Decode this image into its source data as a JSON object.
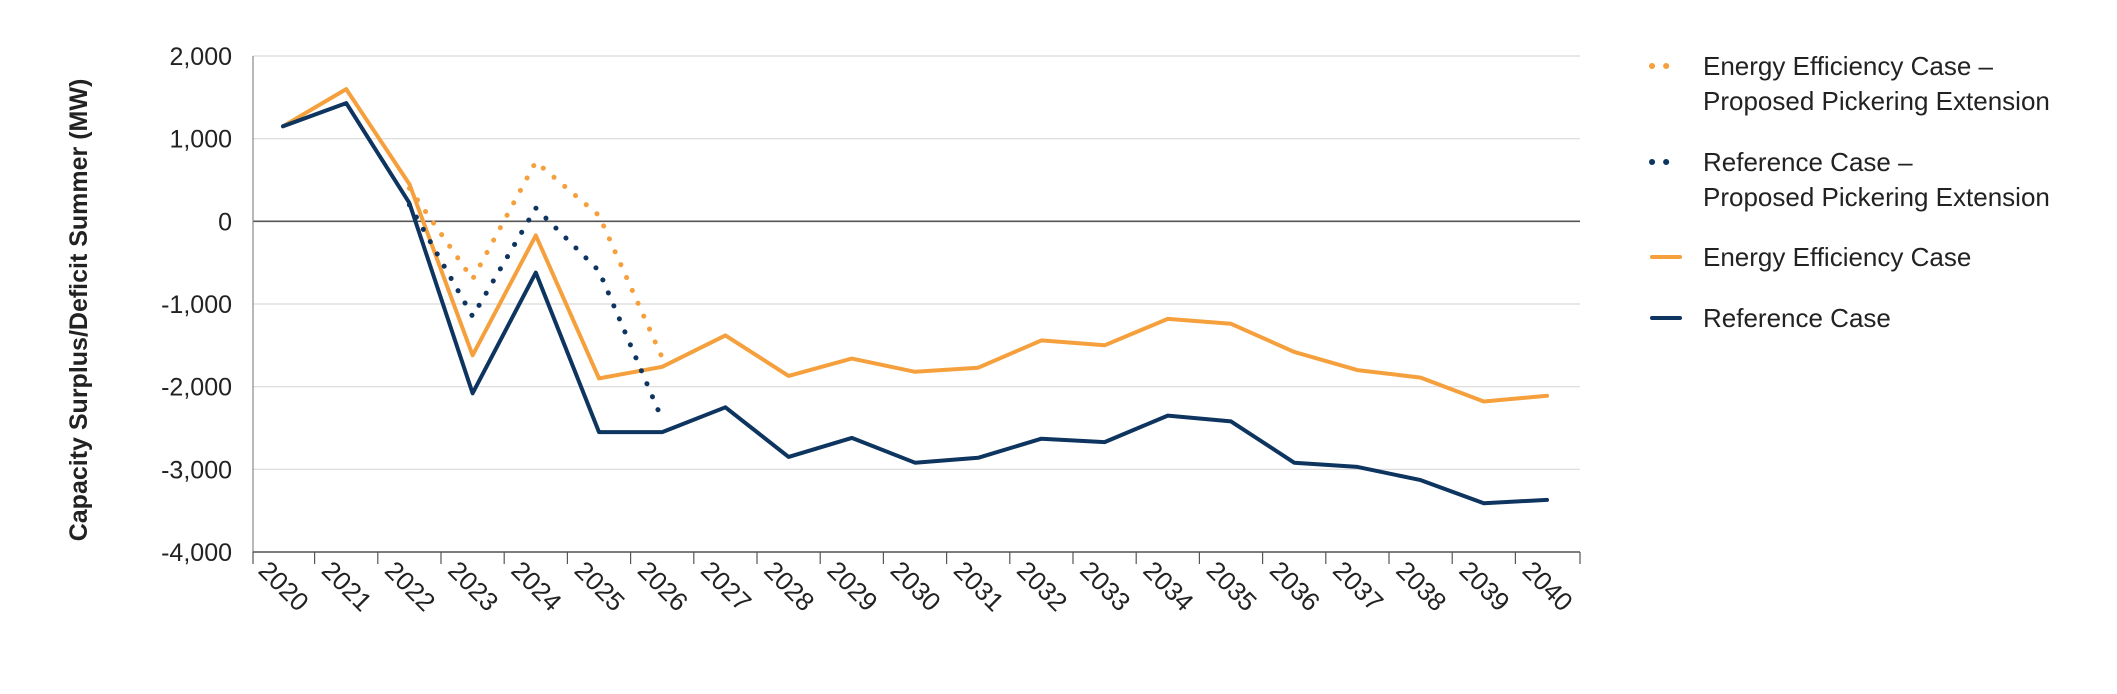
{
  "chart_data": {
    "type": "line",
    "title": "",
    "xlabel": "",
    "ylabel": "Capacity Surplus/Deficit Summer (MW)",
    "ylim": [
      -4000,
      2000
    ],
    "yticks": [
      2000,
      1000,
      0,
      -1000,
      -2000,
      -3000,
      -4000
    ],
    "ytick_labels": [
      "2,000",
      "1,000",
      "0",
      "-1,000",
      "-2,000",
      "-3,000",
      "-4,000"
    ],
    "x": [
      "2020",
      "2021",
      "2022",
      "2023",
      "2024",
      "2025",
      "2026",
      "2027",
      "2028",
      "2029",
      "2030",
      "2031",
      "2032",
      "2033",
      "2034",
      "2035",
      "2036",
      "2037",
      "2038",
      "2039",
      "2040"
    ],
    "grid": "horizontal",
    "legend_position": "right",
    "series": [
      {
        "name": "Energy Efficiency Case – Proposed Pickering Extension",
        "style": "dotted",
        "color": "#F5A03C",
        "values": [
          null,
          null,
          400,
          -700,
          720,
          70,
          -1650,
          null,
          null,
          null,
          null,
          null,
          null,
          null,
          null,
          null,
          null,
          null,
          null,
          null,
          null
        ]
      },
      {
        "name": "Reference Case – Proposed Pickering Extension",
        "style": "dotted",
        "color": "#0E3460",
        "values": [
          null,
          null,
          200,
          -1150,
          160,
          -600,
          -2400,
          null,
          null,
          null,
          null,
          null,
          null,
          null,
          null,
          null,
          null,
          null,
          null,
          null,
          null
        ]
      },
      {
        "name": "Energy Efficiency Case",
        "style": "solid",
        "color": "#F5A03C",
        "values": [
          1150,
          1600,
          450,
          -1620,
          -170,
          -1900,
          -1760,
          -1380,
          -1870,
          -1660,
          -1820,
          -1770,
          -1440,
          -1500,
          -1180,
          -1240,
          -1580,
          -1800,
          -1890,
          -2180,
          -2110
        ]
      },
      {
        "name": "Reference Case",
        "style": "solid",
        "color": "#0E3460",
        "values": [
          1150,
          1430,
          220,
          -2080,
          -620,
          -2550,
          -2550,
          -2250,
          -2850,
          -2620,
          -2920,
          -2860,
          -2630,
          -2670,
          -2350,
          -2420,
          -2920,
          -2970,
          -3130,
          -3410,
          -3370
        ]
      }
    ]
  }
}
